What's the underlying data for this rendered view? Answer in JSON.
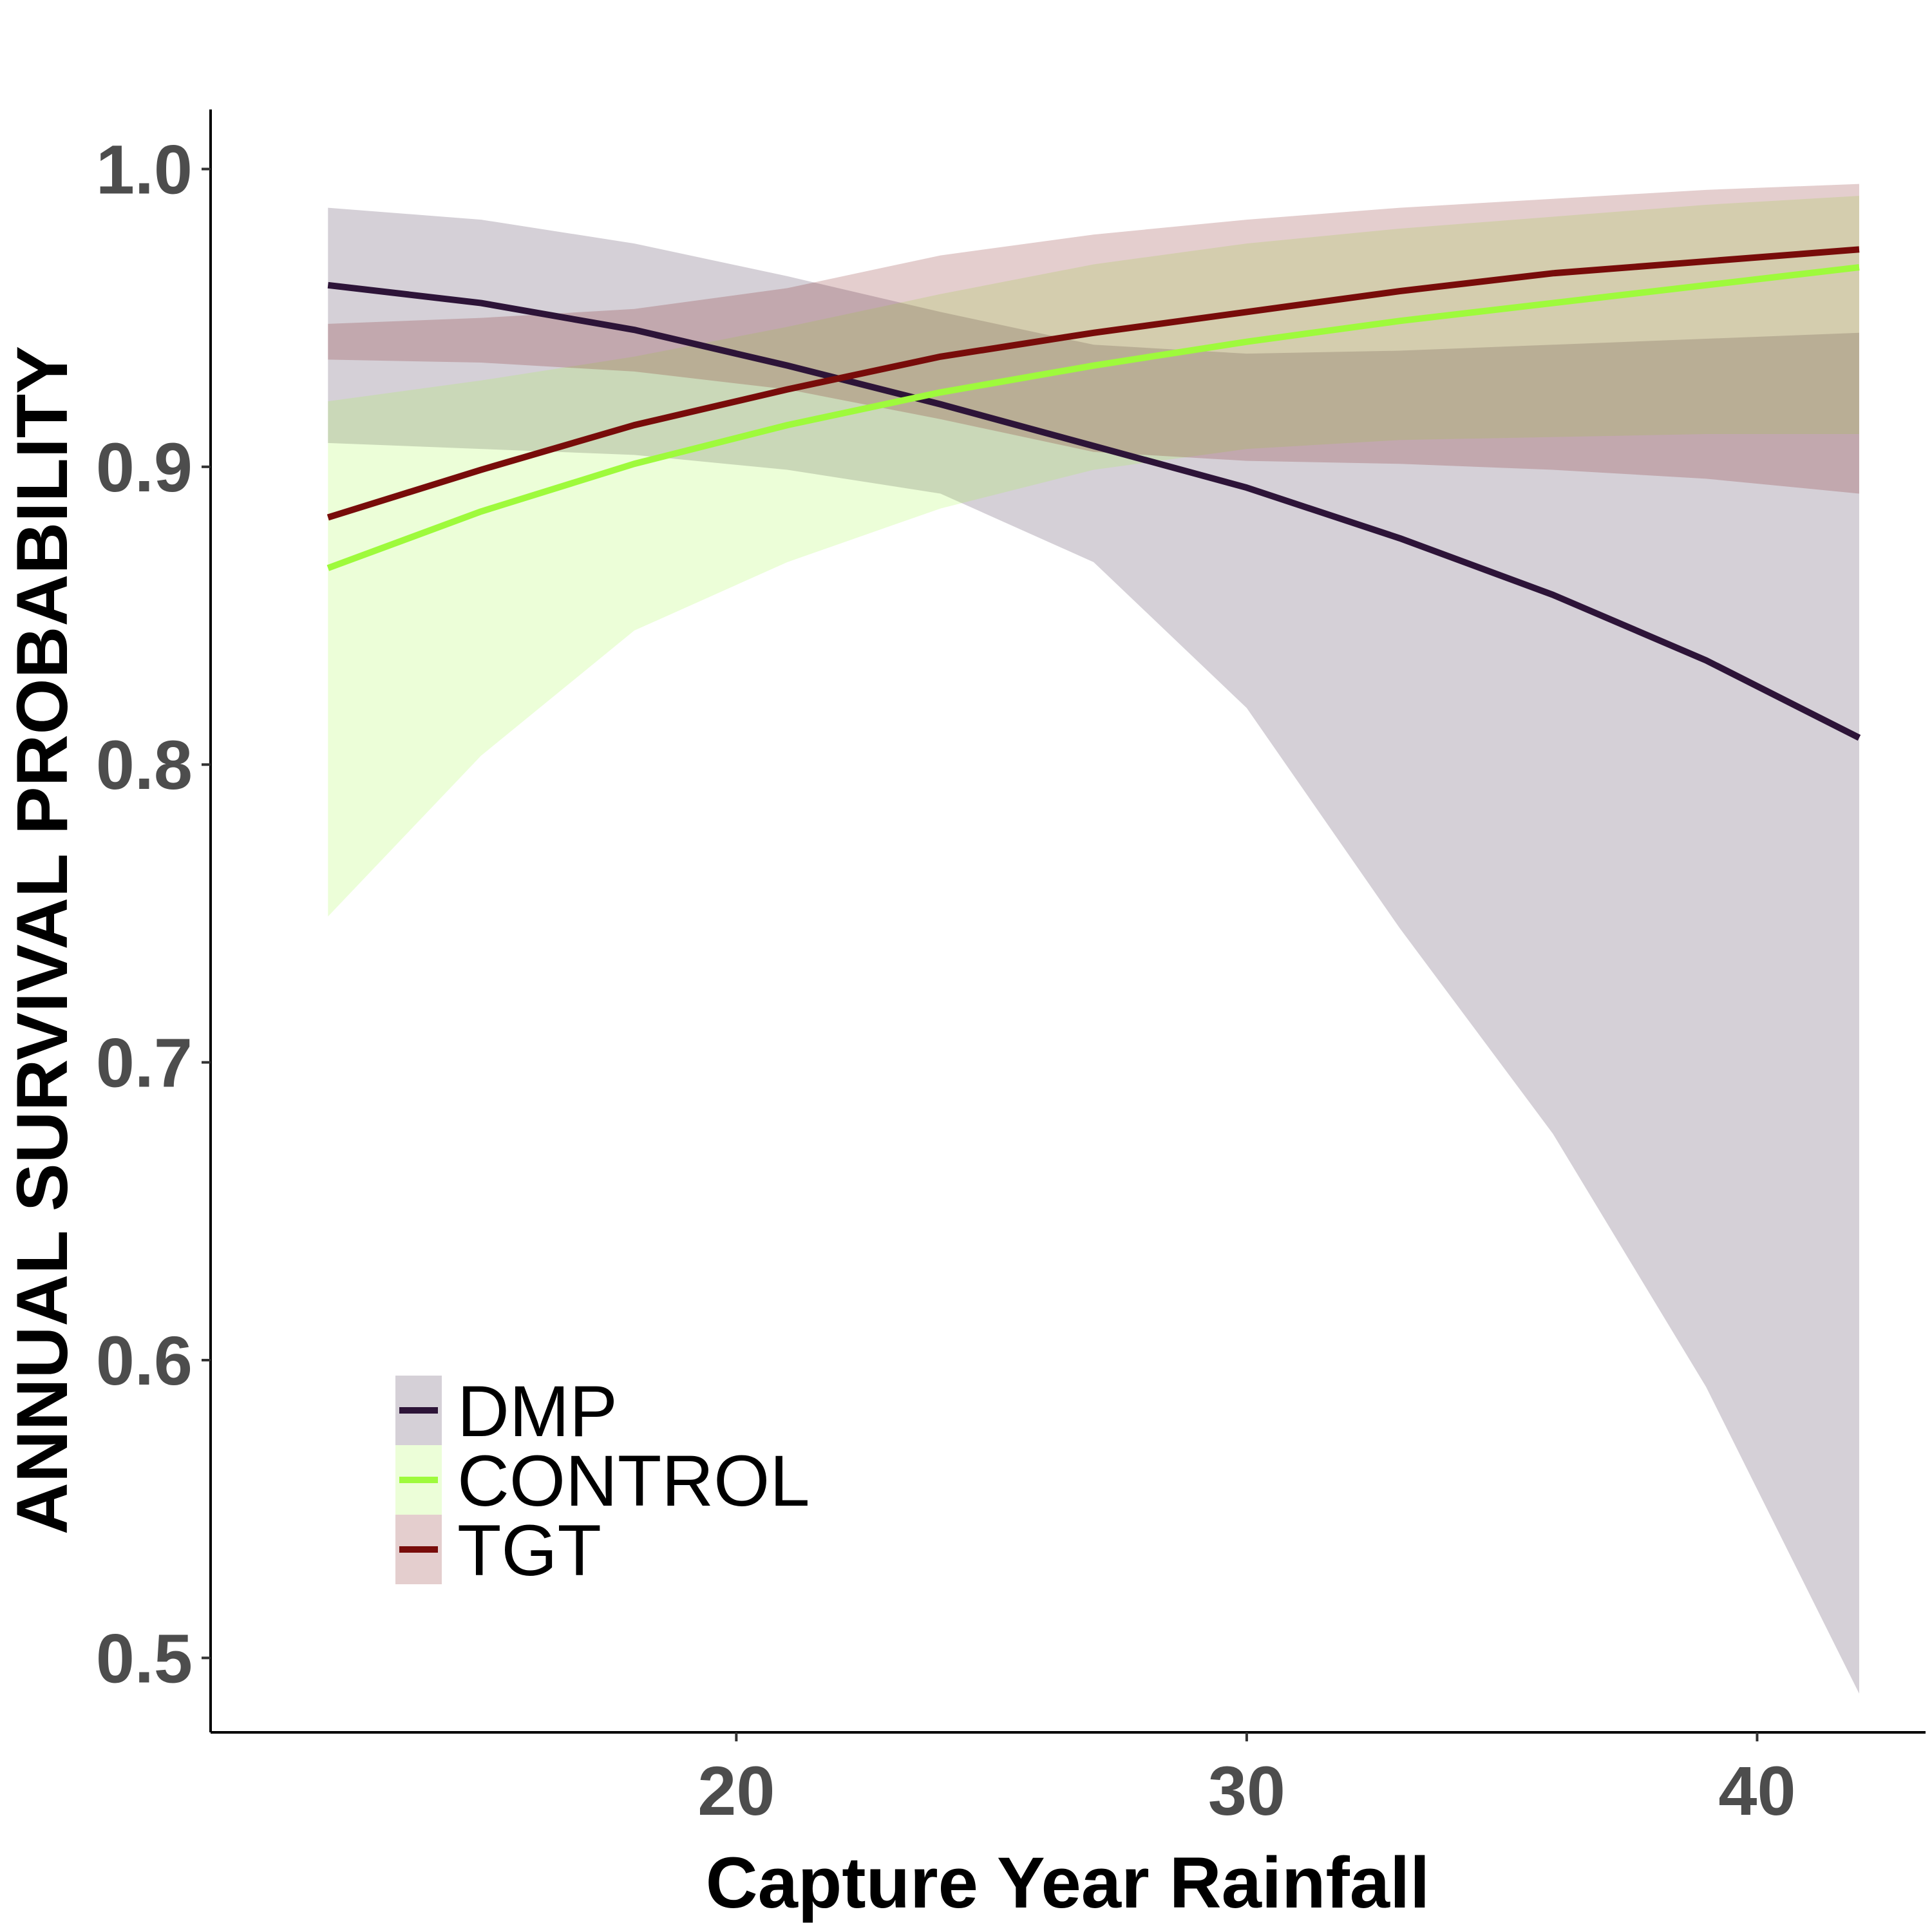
{
  "chart_data": {
    "type": "line",
    "title": "",
    "xlabel": "Capture Year Rainfall",
    "ylabel": "ANNUAL SURVIVAL PROBABILITY",
    "xlim": [
      9.7,
      43.3
    ],
    "ylim": [
      0.475,
      1.02
    ],
    "xticks": [
      20,
      30,
      40
    ],
    "xtick_labels": [
      "20",
      "30",
      "40"
    ],
    "yticks": [
      0.5,
      0.6,
      0.7,
      0.8,
      0.9,
      1.0
    ],
    "ytick_labels": [
      "0.5",
      "0.6",
      "0.7",
      "0.8",
      "0.9",
      "1.0"
    ],
    "grid": false,
    "legend_position": "bottom-left",
    "x": [
      12,
      15,
      18,
      21,
      24,
      27,
      30,
      33,
      36,
      39,
      42
    ],
    "series": [
      {
        "name": "DMP",
        "color": "#2d1438",
        "band_color": "#d6d0da",
        "values": [
          0.961,
          0.955,
          0.946,
          0.934,
          0.921,
          0.907,
          0.893,
          0.876,
          0.857,
          0.835,
          0.809
        ],
        "lower": [
          0.908,
          0.906,
          0.904,
          0.899,
          0.891,
          0.868,
          0.819,
          0.745,
          0.676,
          0.591,
          0.488
        ],
        "upper": [
          0.987,
          0.983,
          0.975,
          0.964,
          0.952,
          0.941,
          0.938,
          0.939,
          0.941,
          0.943,
          0.945
        ]
      },
      {
        "name": "CONTROL",
        "color": "#9efa3c",
        "band_color": "#e8fbd6",
        "values": [
          0.866,
          0.885,
          0.901,
          0.914,
          0.925,
          0.934,
          0.942,
          0.949,
          0.955,
          0.961,
          0.967
        ],
        "lower": [
          0.749,
          0.803,
          0.845,
          0.868,
          0.886,
          0.899,
          0.906,
          0.909,
          0.91,
          0.911,
          0.911
        ],
        "upper": [
          0.922,
          0.929,
          0.937,
          0.947,
          0.958,
          0.968,
          0.975,
          0.98,
          0.984,
          0.988,
          0.991
        ]
      },
      {
        "name": "TGT",
        "color": "#780c0a",
        "band_color": "#e4cacb",
        "values": [
          0.883,
          0.899,
          0.914,
          0.926,
          0.937,
          0.945,
          0.952,
          0.959,
          0.965,
          0.969,
          0.973
        ],
        "lower": [
          0.936,
          0.935,
          0.932,
          0.926,
          0.916,
          0.905,
          0.902,
          0.901,
          0.899,
          0.896,
          0.891
        ],
        "upper": [
          0.948,
          0.95,
          0.953,
          0.96,
          0.971,
          0.978,
          0.983,
          0.987,
          0.99,
          0.993,
          0.995
        ]
      }
    ]
  }
}
